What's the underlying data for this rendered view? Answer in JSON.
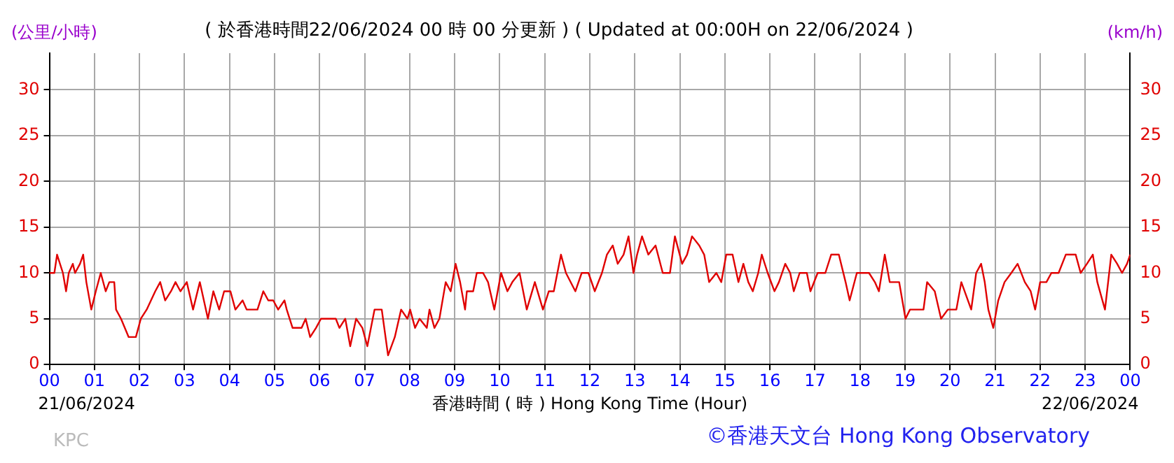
{
  "chart_data": {
    "type": "line",
    "title": "( 於香港時間22/06/2024 00 時 00 分更新 ) ( Updated at 00:00H on 22/06/2024 )",
    "xlabel": "香港時間 ( 時 ) Hong Kong Time (Hour)",
    "ylabel": "(公里/小時)",
    "y2label": "(km/h)",
    "annotations": [
      "21/06/2024",
      "22/06/2024",
      "KPC",
      "©香港天文台 Hong Kong Observatory"
    ],
    "xlim": [
      0,
      24
    ],
    "xticks": [
      {
        "value": 0,
        "label": "00"
      },
      {
        "value": 1,
        "label": "01"
      },
      {
        "value": 2,
        "label": "02"
      },
      {
        "value": 3,
        "label": "03"
      },
      {
        "value": 4,
        "label": "04"
      },
      {
        "value": 5,
        "label": "05"
      },
      {
        "value": 6,
        "label": "06"
      },
      {
        "value": 7,
        "label": "07"
      },
      {
        "value": 8,
        "label": "08"
      },
      {
        "value": 9,
        "label": "09"
      },
      {
        "value": 10,
        "label": "10"
      },
      {
        "value": 11,
        "label": "11"
      },
      {
        "value": 12,
        "label": "12"
      },
      {
        "value": 13,
        "label": "13"
      },
      {
        "value": 14,
        "label": "14"
      },
      {
        "value": 15,
        "label": "15"
      },
      {
        "value": 16,
        "label": "16"
      },
      {
        "value": 17,
        "label": "17"
      },
      {
        "value": 18,
        "label": "18"
      },
      {
        "value": 19,
        "label": "19"
      },
      {
        "value": 20,
        "label": "20"
      },
      {
        "value": 21,
        "label": "21"
      },
      {
        "value": 22,
        "label": "22"
      },
      {
        "value": 23,
        "label": "23"
      },
      {
        "value": 24,
        "label": "00"
      }
    ],
    "ylim": [
      0,
      34
    ],
    "yticks": [
      0,
      5,
      10,
      15,
      20,
      25,
      30
    ],
    "y2lim": [
      0,
      34
    ],
    "y2ticks": [
      0,
      5,
      10,
      15,
      20,
      25,
      30
    ],
    "grid": true,
    "legend": false,
    "marker": "none",
    "line_style": "solid",
    "series": [
      {
        "color": "#e00000",
        "x": [
          0,
          0.11,
          0.17,
          0.3,
          0.37,
          0.43,
          0.52,
          0.57,
          0.68,
          0.75,
          0.82,
          0.93,
          1.03,
          1.14,
          1.25,
          1.33,
          1.44,
          1.48,
          1.59,
          1.76,
          1.92,
          2.03,
          2.16,
          2.35,
          2.46,
          2.57,
          2.7,
          2.8,
          2.91,
          3.05,
          3.19,
          3.34,
          3.52,
          3.64,
          3.77,
          3.88,
          4.02,
          4.13,
          4.29,
          4.38,
          4.62,
          4.75,
          4.86,
          4.97,
          5.08,
          5.22,
          5.27,
          5.4,
          5.6,
          5.69,
          5.79,
          5.92,
          6.03,
          6.36,
          6.44,
          6.57,
          6.68,
          6.81,
          6.95,
          7.06,
          7.22,
          7.38,
          7.52,
          7.67,
          7.81,
          7.95,
          8.01,
          8.12,
          8.22,
          8.38,
          8.44,
          8.55,
          8.66,
          8.8,
          8.91,
          9.02,
          9.12,
          9.23,
          9.27,
          9.41,
          9.49,
          9.63,
          9.74,
          9.88,
          10.03,
          10.17,
          10.28,
          10.44,
          10.6,
          10.78,
          10.96,
          11.09,
          11.2,
          11.36,
          11.47,
          11.68,
          11.82,
          11.97,
          12.11,
          12.27,
          12.38,
          12.51,
          12.62,
          12.75,
          12.86,
          12.97,
          13.05,
          13.16,
          13.3,
          13.46,
          13.62,
          13.78,
          13.89,
          14.05,
          14.16,
          14.27,
          14.43,
          14.54,
          14.65,
          14.81,
          14.92,
          15.03,
          15.17,
          15.3,
          15.41,
          15.52,
          15.62,
          15.74,
          15.82,
          15.95,
          16.1,
          16.2,
          16.34,
          16.45,
          16.53,
          16.66,
          16.82,
          16.9,
          17.06,
          17.23,
          17.36,
          17.53,
          17.68,
          17.77,
          17.93,
          18.2,
          18.33,
          18.42,
          18.55,
          18.66,
          18.87,
          19.01,
          19.11,
          19.41,
          19.49,
          19.66,
          19.8,
          19.95,
          20.14,
          20.25,
          20.47,
          20.58,
          20.69,
          20.77,
          20.85,
          20.96,
          21.07,
          21.21,
          21.36,
          21.5,
          21.66,
          21.79,
          21.89,
          22.0,
          22.14,
          22.25,
          22.41,
          22.57,
          22.79,
          22.9,
          23.04,
          23.17,
          23.27,
          23.44,
          23.58,
          23.71,
          23.82,
          23.93,
          24
        ],
        "values": [
          10,
          10,
          12,
          10,
          8,
          10,
          11,
          10,
          11,
          12,
          9,
          6,
          8,
          10,
          8,
          9,
          9,
          6,
          5,
          3,
          3,
          5,
          6,
          8,
          9,
          7,
          8,
          9,
          8,
          9,
          6,
          9,
          5,
          8,
          6,
          8,
          8,
          6,
          7,
          6,
          6,
          8,
          7,
          7,
          6,
          7,
          6,
          4,
          4,
          5,
          3,
          4,
          5,
          5,
          4,
          5,
          2,
          5,
          4,
          2,
          6,
          6,
          1,
          3,
          6,
          5,
          6,
          4,
          5,
          4,
          6,
          4,
          5,
          9,
          8,
          11,
          9,
          6,
          8,
          8,
          10,
          10,
          9,
          6,
          10,
          8,
          9,
          10,
          6,
          9,
          6,
          8,
          8,
          12,
          10,
          8,
          10,
          10,
          8,
          10,
          12,
          13,
          11,
          12,
          14,
          10,
          12,
          14,
          12,
          13,
          10,
          10,
          14,
          11,
          12,
          14,
          13,
          12,
          9,
          10,
          9,
          12,
          12,
          9,
          11,
          9,
          8,
          10,
          12,
          10,
          8,
          9,
          11,
          10,
          8,
          10,
          10,
          8,
          10,
          10,
          12,
          12,
          9,
          7,
          10,
          10,
          9,
          8,
          12,
          9,
          9,
          5,
          6,
          6,
          9,
          8,
          5,
          6,
          6,
          9,
          6,
          10,
          11,
          9,
          6,
          4,
          7,
          9,
          10,
          11,
          9,
          8,
          6,
          9,
          9,
          10,
          10,
          12,
          12,
          10,
          11,
          12,
          9,
          6,
          12,
          11,
          10,
          11,
          12
        ]
      }
    ]
  }
}
